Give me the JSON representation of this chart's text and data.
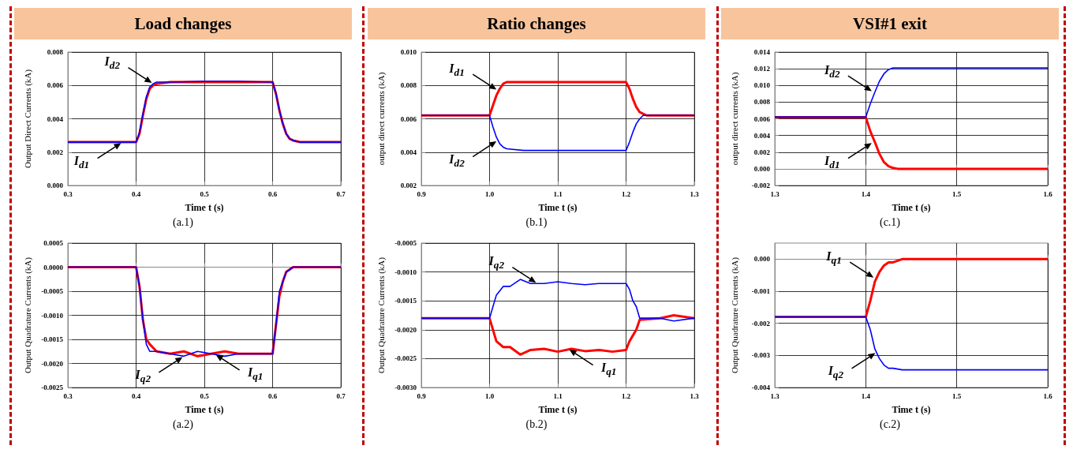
{
  "chart_data": [
    {
      "type": "line",
      "title": "Load changes",
      "xlabel": "Time t (s)",
      "ylabel": "Output Direct Currents (kA)",
      "xlim": [
        0.3,
        0.7
      ],
      "xticks": [
        0.3,
        0.4,
        0.5,
        0.6,
        0.7
      ],
      "ylim": [
        0,
        0.008
      ],
      "yticks": [
        {
          "value": 0,
          "label": "0.000"
        },
        {
          "value": 0.002,
          "label": "0.002"
        },
        {
          "value": 0.004,
          "label": "0.004"
        },
        {
          "value": 0.006,
          "label": "0.006"
        },
        {
          "value": 0.008,
          "label": "0.008"
        }
      ],
      "grid": true,
      "marker": "none",
      "x": [
        0.3,
        0.4,
        0.405,
        0.41,
        0.415,
        0.42,
        0.425,
        0.43,
        0.45,
        0.5,
        0.55,
        0.6,
        0.605,
        0.61,
        0.615,
        0.62,
        0.625,
        0.63,
        0.64,
        0.7
      ],
      "series": [
        {
          "color": "#ff0000",
          "values": [
            0.0026,
            0.0026,
            0.0031,
            0.0042,
            0.0052,
            0.0058,
            0.006,
            0.0061,
            0.0062,
            0.0062,
            0.0062,
            0.0062,
            0.0055,
            0.0045,
            0.0037,
            0.0031,
            0.0028,
            0.0027,
            0.0026,
            0.0026
          ]
        },
        {
          "color": "#0000ff",
          "values": [
            0.0026,
            0.0026,
            0.0032,
            0.0043,
            0.0053,
            0.0059,
            0.0061,
            0.0062,
            0.0062,
            0.00625,
            0.00625,
            0.0062,
            0.0055,
            0.0045,
            0.0037,
            0.0031,
            0.0028,
            0.0027,
            0.0026,
            0.0026
          ]
        }
      ],
      "annotations": [
        "(a.1)",
        {
          "text": "I$_{d2}$",
          "x": 0.425,
          "y": 0.0061
        },
        {
          "text": "I$_{d1}$",
          "x": 0.38,
          "y": 0.0026
        }
      ]
    },
    {
      "type": "line",
      "title": "Ratio changes",
      "xlabel": "Time t (s)",
      "ylabel": "output direct currents (kA)",
      "xlim": [
        0.9,
        1.3
      ],
      "xticks": [
        0.9,
        {
          "value": 1,
          "label": "1.0"
        },
        1.1,
        1.2,
        1.3
      ],
      "ylim": [
        0.002,
        0.01
      ],
      "yticks": [
        {
          "value": 0.002,
          "label": "0.002"
        },
        {
          "value": 0.004,
          "label": "0.004"
        },
        {
          "value": 0.006,
          "label": "0.006"
        },
        {
          "value": 0.008,
          "label": "0.008"
        },
        {
          "value": 0.01,
          "label": "0.010"
        }
      ],
      "grid": true,
      "marker": "none",
      "x": [
        0.9,
        1.0,
        1.005,
        1.01,
        1.015,
        1.02,
        1.025,
        1.05,
        1.1,
        1.15,
        1.2,
        1.205,
        1.21,
        1.215,
        1.22,
        1.225,
        1.23,
        1.3
      ],
      "series": [
        {
          "color": "#ff0000",
          "values": [
            0.0062,
            0.0062,
            0.0068,
            0.0074,
            0.0078,
            0.0081,
            0.0082,
            0.0082,
            0.0082,
            0.0082,
            0.0082,
            0.0078,
            0.0072,
            0.0067,
            0.0064,
            0.0063,
            0.0062,
            0.0062
          ]
        },
        {
          "color": "#0000ff",
          "values": [
            0.0062,
            0.0062,
            0.0055,
            0.0049,
            0.0045,
            0.0043,
            0.0042,
            0.0041,
            0.0041,
            0.0041,
            0.0041,
            0.0046,
            0.0052,
            0.0057,
            0.006,
            0.0062,
            0.0062,
            0.0062
          ]
        }
      ],
      "annotations": [
        "(b.1)",
        {
          "text": "I$_{d1}$",
          "x": 1.012,
          "y": 0.0077
        },
        {
          "text": "I$_{d2}$",
          "x": 1.012,
          "y": 0.0047
        }
      ]
    },
    {
      "type": "line",
      "title": "VSI#1 exit",
      "xlabel": "Time t (s)",
      "ylabel": "output direct currents (kA)",
      "xlim": [
        1.3,
        1.6
      ],
      "xticks": [
        1.3,
        1.4,
        1.5,
        1.6
      ],
      "ylim": [
        -0.002,
        0.014
      ],
      "yticks": [
        {
          "value": -0.002,
          "label": "-0.002"
        },
        {
          "value": 0,
          "label": "0.000"
        },
        {
          "value": 0.002,
          "label": "0.002"
        },
        {
          "value": 0.004,
          "label": "0.004"
        },
        {
          "value": 0.006,
          "label": "0.006"
        },
        {
          "value": 0.008,
          "label": "0.008"
        },
        {
          "value": 0.01,
          "label": "0.010"
        },
        {
          "value": 0.012,
          "label": "0.012"
        },
        {
          "value": 0.014,
          "label": "0.014"
        }
      ],
      "grid": true,
      "marker": "none",
      "x": [
        1.3,
        1.4,
        1.405,
        1.41,
        1.415,
        1.42,
        1.425,
        1.43,
        1.435,
        1.6
      ],
      "series": [
        {
          "color": "#ff0000",
          "values": [
            0.0062,
            0.0062,
            0.0045,
            0.0032,
            0.0018,
            0.0008,
            0.0003,
            0.0001,
            0,
            0
          ]
        },
        {
          "color": "#0000ff",
          "values": [
            0.0062,
            0.0062,
            0.0078,
            0.0092,
            0.0105,
            0.0114,
            0.0119,
            0.0121,
            0.0121,
            0.0121
          ]
        }
      ],
      "annotations": [
        "(c.1)",
        {
          "text": "I$_{d2}$",
          "x": 1.408,
          "y": 0.0092
        },
        {
          "text": "I$_{d1}$",
          "x": 1.408,
          "y": 0.0032
        }
      ]
    },
    {
      "type": "line",
      "xlabel": "Time t (s)",
      "ylabel": "Output Quadrature Currents (kA)",
      "xlim": [
        0.3,
        0.7
      ],
      "xticks": [
        0.3,
        0.4,
        0.5,
        0.6,
        0.7
      ],
      "ylim": [
        -0.0025,
        0.0005
      ],
      "yticks": [
        {
          "value": -0.0025,
          "label": "-0.0025"
        },
        {
          "value": -0.002,
          "label": "-0.0020"
        },
        {
          "value": -0.0015,
          "label": "-0.0015"
        },
        {
          "value": -0.001,
          "label": "-0.0010"
        },
        {
          "value": -0.0005,
          "label": "-0.0005"
        },
        {
          "value": 0,
          "label": "0.0000"
        },
        {
          "value": 0.0005,
          "label": "0.0005"
        }
      ],
      "grid": true,
      "marker": "none",
      "x": [
        0.3,
        0.4,
        0.405,
        0.41,
        0.415,
        0.42,
        0.43,
        0.45,
        0.47,
        0.49,
        0.51,
        0.53,
        0.55,
        0.6,
        0.605,
        0.61,
        0.615,
        0.62,
        0.63,
        0.65,
        0.7
      ],
      "series": [
        {
          "color": "#ff0000",
          "values": [
            0,
            0,
            -0.0004,
            -0.0011,
            -0.0015,
            -0.0016,
            -0.00175,
            -0.0018,
            -0.00175,
            -0.00185,
            -0.0018,
            -0.00175,
            -0.0018,
            -0.0018,
            -0.0012,
            -0.0006,
            -0.0003,
            -0.0001,
            0,
            0,
            0
          ]
        },
        {
          "color": "#0000ff",
          "values": [
            0,
            0,
            -0.0004,
            -0.0011,
            -0.0016,
            -0.00175,
            -0.00175,
            -0.0018,
            -0.00185,
            -0.00175,
            -0.0018,
            -0.00185,
            -0.0018,
            -0.0018,
            -0.0012,
            -0.0005,
            -0.0003,
            -0.0001,
            0,
            0,
            0
          ]
        }
      ],
      "annotations": [
        "(a.2)",
        {
          "text": "I$_{q1}$",
          "x": 0.515,
          "y": -0.0018
        },
        {
          "text": "I$_{q2}$",
          "x": 0.47,
          "y": -0.00185
        }
      ]
    },
    {
      "type": "line",
      "xlabel": "Time t (s)",
      "ylabel": "Output Quadrature Currents (kA)",
      "xlim": [
        0.9,
        1.3
      ],
      "xticks": [
        0.9,
        {
          "value": 1,
          "label": "1.0"
        },
        1.1,
        1.2,
        1.3
      ],
      "ylim": [
        -0.003,
        -0.0005
      ],
      "yticks": [
        {
          "value": -0.003,
          "label": "-0.0030"
        },
        {
          "value": -0.0025,
          "label": "-0.0025"
        },
        {
          "value": -0.002,
          "label": "-0.0020"
        },
        {
          "value": -0.0015,
          "label": "-0.0015"
        },
        {
          "value": -0.001,
          "label": "-0.0010"
        },
        {
          "value": -0.0005,
          "label": "-0.0005"
        }
      ],
      "grid": true,
      "marker": "none",
      "x": [
        0.9,
        1.0,
        1.005,
        1.01,
        1.02,
        1.03,
        1.045,
        1.06,
        1.08,
        1.1,
        1.12,
        1.14,
        1.16,
        1.18,
        1.2,
        1.205,
        1.21,
        1.215,
        1.22,
        1.25,
        1.27,
        1.3
      ],
      "series": [
        {
          "color": "#ff0000",
          "values": [
            -0.0018,
            -0.0018,
            -0.002,
            -0.0022,
            -0.0023,
            -0.0023,
            -0.00243,
            -0.00235,
            -0.00233,
            -0.00238,
            -0.00233,
            -0.00237,
            -0.00235,
            -0.00238,
            -0.00235,
            -0.0022,
            -0.0021,
            -0.002,
            -0.00183,
            -0.0018,
            -0.00175,
            -0.0018
          ]
        },
        {
          "color": "#0000ff",
          "values": [
            -0.0018,
            -0.0018,
            -0.0016,
            -0.0014,
            -0.00125,
            -0.00125,
            -0.00113,
            -0.0012,
            -0.0012,
            -0.00117,
            -0.0012,
            -0.00122,
            -0.0012,
            -0.0012,
            -0.0012,
            -0.0013,
            -0.0015,
            -0.0016,
            -0.0018,
            -0.0018,
            -0.00185,
            -0.0018
          ]
        }
      ],
      "annotations": [
        "(b.2)",
        {
          "text": "I$_{q2}$",
          "x": 1.07,
          "y": -0.0012
        },
        {
          "text": "I$_{q1}$",
          "x": 1.115,
          "y": -0.00233
        }
      ]
    },
    {
      "type": "line",
      "xlabel": "Time t (s)",
      "ylabel": "Output Quadrature Currents (kA)",
      "xlim": [
        1.3,
        1.6
      ],
      "xticks": [
        1.3,
        1.4,
        1.5,
        1.6
      ],
      "ylim": [
        -0.004,
        0.0005
      ],
      "yticks": [
        {
          "value": -0.004,
          "label": "-0.004"
        },
        {
          "value": -0.003,
          "label": "-0.003"
        },
        {
          "value": -0.002,
          "label": "-0.002"
        },
        {
          "value": -0.001,
          "label": "-0.001"
        },
        {
          "value": 0,
          "label": "0.000"
        }
      ],
      "grid": true,
      "marker": "none",
      "x": [
        1.3,
        1.4,
        1.405,
        1.41,
        1.415,
        1.42,
        1.425,
        1.43,
        1.44,
        1.6
      ],
      "series": [
        {
          "color": "#ff0000",
          "values": [
            -0.0018,
            -0.0018,
            -0.0013,
            -0.0007,
            -0.0004,
            -0.0002,
            -0.0001,
            -0.0001,
            0,
            0
          ]
        },
        {
          "color": "#0000ff",
          "values": [
            -0.0018,
            -0.0018,
            -0.0022,
            -0.0028,
            -0.0031,
            -0.0033,
            -0.0034,
            -0.0034,
            -0.00345,
            -0.00345
          ]
        }
      ],
      "annotations": [
        "(c.2)",
        {
          "text": "I$_{q1}$",
          "x": 1.41,
          "y": -0.0006
        },
        {
          "text": "I$_{q2}$",
          "x": 1.412,
          "y": -0.0029
        }
      ]
    }
  ]
}
